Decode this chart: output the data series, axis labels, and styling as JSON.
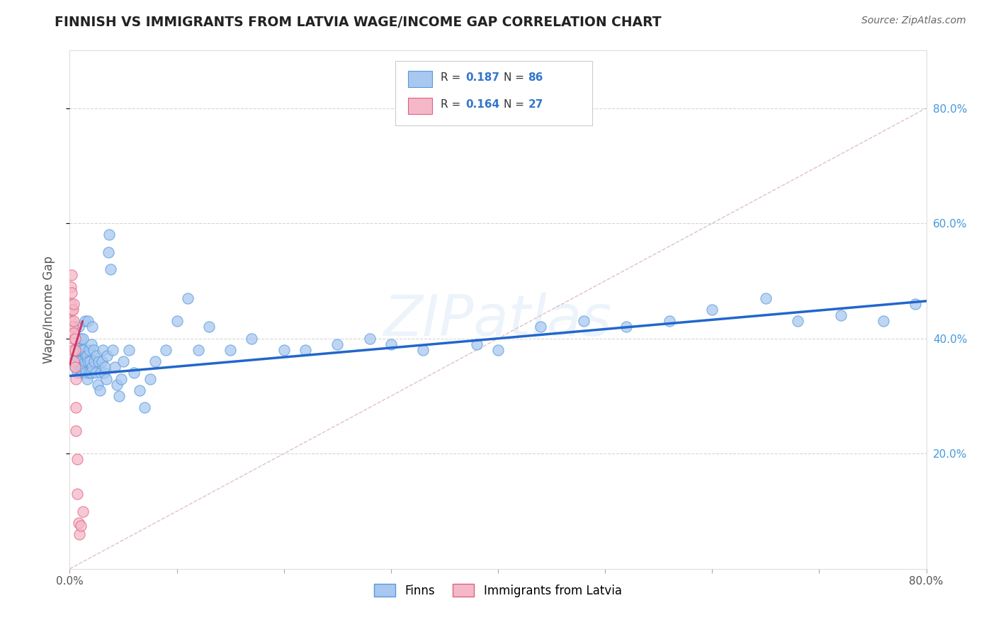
{
  "title": "FINNISH VS IMMIGRANTS FROM LATVIA WAGE/INCOME GAP CORRELATION CHART",
  "source": "Source: ZipAtlas.com",
  "ylabel": "Wage/Income Gap",
  "xlim": [
    0.0,
    0.8
  ],
  "ylim": [
    0.0,
    0.9
  ],
  "finns_color": "#a8c8f0",
  "immigrants_color": "#f5b8c8",
  "finn_marker_edge": "#5599dd",
  "immigrant_marker_edge": "#e06080",
  "finn_line_color": "#2266cc",
  "immigrant_line_color": "#cc3366",
  "diagonal_color": "#ddbbbb",
  "background_color": "#ffffff",
  "grid_color": "#cccccc",
  "right_tick_color": "#4499dd",
  "watermark_color": "#aaccee",
  "finns_scatter_x": [
    0.005,
    0.006,
    0.007,
    0.007,
    0.008,
    0.008,
    0.009,
    0.009,
    0.01,
    0.01,
    0.01,
    0.011,
    0.011,
    0.012,
    0.012,
    0.013,
    0.013,
    0.014,
    0.014,
    0.015,
    0.015,
    0.016,
    0.016,
    0.017,
    0.017,
    0.018,
    0.018,
    0.019,
    0.02,
    0.02,
    0.021,
    0.021,
    0.022,
    0.023,
    0.024,
    0.025,
    0.026,
    0.027,
    0.028,
    0.029,
    0.03,
    0.031,
    0.032,
    0.033,
    0.034,
    0.035,
    0.036,
    0.037,
    0.038,
    0.04,
    0.042,
    0.044,
    0.046,
    0.048,
    0.05,
    0.055,
    0.06,
    0.065,
    0.07,
    0.075,
    0.08,
    0.09,
    0.1,
    0.11,
    0.12,
    0.13,
    0.15,
    0.17,
    0.2,
    0.22,
    0.25,
    0.28,
    0.3,
    0.33,
    0.38,
    0.4,
    0.44,
    0.48,
    0.52,
    0.56,
    0.6,
    0.65,
    0.68,
    0.72,
    0.76,
    0.79
  ],
  "finns_scatter_y": [
    0.35,
    0.37,
    0.34,
    0.38,
    0.36,
    0.42,
    0.35,
    0.39,
    0.34,
    0.36,
    0.4,
    0.35,
    0.38,
    0.34,
    0.4,
    0.35,
    0.38,
    0.36,
    0.43,
    0.34,
    0.37,
    0.33,
    0.37,
    0.36,
    0.43,
    0.34,
    0.38,
    0.36,
    0.34,
    0.39,
    0.35,
    0.42,
    0.38,
    0.36,
    0.34,
    0.37,
    0.32,
    0.36,
    0.31,
    0.34,
    0.36,
    0.38,
    0.34,
    0.35,
    0.33,
    0.37,
    0.55,
    0.58,
    0.52,
    0.38,
    0.35,
    0.32,
    0.3,
    0.33,
    0.36,
    0.38,
    0.34,
    0.31,
    0.28,
    0.33,
    0.36,
    0.38,
    0.43,
    0.47,
    0.38,
    0.42,
    0.38,
    0.4,
    0.38,
    0.38,
    0.39,
    0.4,
    0.39,
    0.38,
    0.39,
    0.38,
    0.42,
    0.43,
    0.42,
    0.43,
    0.45,
    0.47,
    0.43,
    0.44,
    0.43,
    0.46
  ],
  "immigrants_scatter_x": [
    0.001,
    0.001,
    0.001,
    0.002,
    0.002,
    0.002,
    0.002,
    0.003,
    0.003,
    0.003,
    0.003,
    0.004,
    0.004,
    0.004,
    0.004,
    0.005,
    0.005,
    0.005,
    0.006,
    0.006,
    0.006,
    0.007,
    0.007,
    0.008,
    0.009,
    0.01,
    0.012
  ],
  "immigrants_scatter_y": [
    0.43,
    0.46,
    0.49,
    0.42,
    0.45,
    0.48,
    0.51,
    0.4,
    0.42,
    0.45,
    0.38,
    0.41,
    0.43,
    0.46,
    0.36,
    0.38,
    0.4,
    0.35,
    0.33,
    0.28,
    0.24,
    0.19,
    0.13,
    0.08,
    0.06,
    0.075,
    0.1
  ],
  "finn_trend_x": [
    0.0,
    0.8
  ],
  "finn_trend_y": [
    0.335,
    0.465
  ],
  "immigrant_trend_x": [
    0.0,
    0.012
  ],
  "immigrant_trend_y": [
    0.355,
    0.43
  ]
}
